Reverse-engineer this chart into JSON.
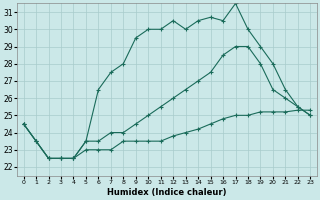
{
  "xlabel": "Humidex (Indice chaleur)",
  "background_color": "#cbe8e8",
  "grid_color": "#a8cccc",
  "line_color": "#1a6b5a",
  "xlim": [
    -0.5,
    23.5
  ],
  "ylim": [
    21.5,
    31.5
  ],
  "xticks": [
    0,
    1,
    2,
    3,
    4,
    5,
    6,
    7,
    8,
    9,
    10,
    11,
    12,
    13,
    14,
    15,
    16,
    17,
    18,
    19,
    20,
    21,
    22,
    23
  ],
  "yticks": [
    22,
    23,
    24,
    25,
    26,
    27,
    28,
    29,
    30,
    31
  ],
  "line1_x": [
    0,
    1,
    2,
    3,
    4,
    5,
    6,
    7,
    8,
    9,
    10,
    11,
    12,
    13,
    14,
    15,
    16,
    17,
    18,
    19,
    20,
    21,
    22,
    23
  ],
  "line1_y": [
    24.5,
    23.5,
    22.5,
    22.5,
    22.5,
    23.5,
    26.5,
    27.5,
    28.0,
    29.5,
    30.0,
    30.0,
    30.5,
    30.0,
    30.5,
    30.7,
    30.5,
    31.5,
    30.0,
    29.0,
    28.0,
    26.5,
    25.5,
    25.0
  ],
  "line2_x": [
    0,
    1,
    2,
    3,
    4,
    5,
    6,
    7,
    8,
    9,
    10,
    11,
    12,
    13,
    14,
    15,
    16,
    17,
    18,
    19,
    20,
    21,
    22,
    23
  ],
  "line2_y": [
    24.5,
    23.5,
    22.5,
    22.5,
    22.5,
    23.5,
    23.5,
    24.0,
    24.0,
    24.5,
    25.0,
    25.5,
    26.0,
    26.5,
    27.0,
    27.5,
    28.5,
    29.0,
    29.0,
    28.0,
    26.5,
    26.0,
    25.5,
    25.0
  ],
  "line3_x": [
    0,
    1,
    2,
    3,
    4,
    5,
    6,
    7,
    8,
    9,
    10,
    11,
    12,
    13,
    14,
    15,
    16,
    17,
    18,
    19,
    20,
    21,
    22,
    23
  ],
  "line3_y": [
    24.5,
    23.5,
    22.5,
    22.5,
    22.5,
    23.0,
    23.0,
    23.0,
    23.5,
    23.5,
    23.5,
    23.5,
    23.8,
    24.0,
    24.2,
    24.5,
    24.8,
    25.0,
    25.0,
    25.2,
    25.2,
    25.2,
    25.3,
    25.3
  ]
}
